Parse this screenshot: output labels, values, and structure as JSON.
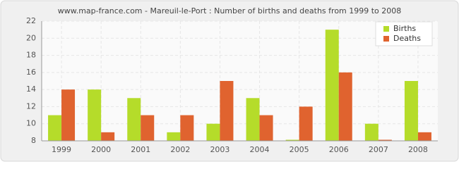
{
  "chart_data": {
    "type": "bar",
    "title": "www.map-france.com - Mareuil-le-Port : Number of births and deaths from 1999 to 2008",
    "categories": [
      "1999",
      "2000",
      "2001",
      "2002",
      "2003",
      "2004",
      "2005",
      "2006",
      "2007",
      "2008"
    ],
    "series": [
      {
        "name": "Births",
        "color": "#b5dc2a",
        "values": [
          11,
          14,
          13,
          9,
          10,
          13,
          8,
          21,
          10,
          15
        ]
      },
      {
        "name": "Deaths",
        "color": "#e0632f",
        "values": [
          14,
          9,
          11,
          11,
          15,
          11,
          12,
          16,
          8,
          9
        ]
      }
    ],
    "ylim": [
      8,
      22
    ],
    "yticks": [
      8,
      10,
      12,
      14,
      16,
      18,
      20,
      22
    ],
    "grid": true,
    "legend": "top-right"
  }
}
